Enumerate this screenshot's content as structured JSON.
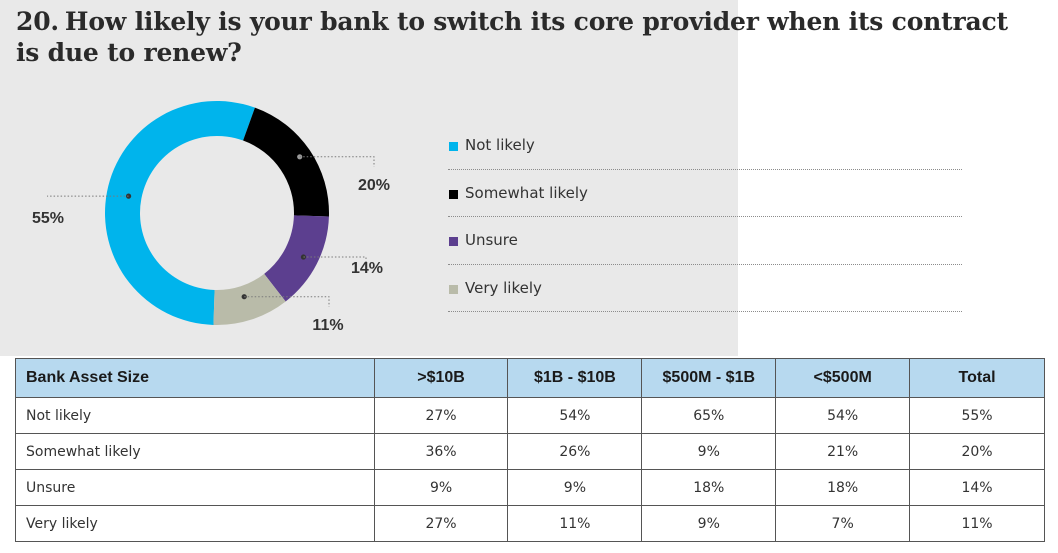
{
  "title": {
    "number": "20.",
    "question": "How likely is your bank to switch its core provider when its contract is due to renew?"
  },
  "chart_data": {
    "type": "pie",
    "title": "How likely is your bank to switch its core provider when its contract is due to renew?",
    "categories": [
      "Not likely",
      "Somewhat likely",
      "Unsure",
      "Very likely"
    ],
    "values": [
      55,
      20,
      14,
      11
    ],
    "value_labels": [
      "55%",
      "20%",
      "14%",
      "11%"
    ],
    "colors": [
      "#00b4ec",
      "#000000",
      "#5c3f8f",
      "#b9bba9"
    ],
    "legend_position": "right"
  },
  "legend": [
    {
      "label": "Not likely",
      "color": "#00b4ec"
    },
    {
      "label": "Somewhat likely",
      "color": "#000000"
    },
    {
      "label": "Unsure",
      "color": "#5c3f8f"
    },
    {
      "label": "Very likely",
      "color": "#b9bba9"
    }
  ],
  "table": {
    "headers": [
      "Bank Asset Size",
      ">$10B",
      "$1B - $10B",
      "$500M - $1B",
      "<$500M",
      "Total"
    ],
    "rows": [
      [
        "Not likely",
        "27%",
        "54%",
        "65%",
        "54%",
        "55%"
      ],
      [
        "Somewhat likely",
        "36%",
        "26%",
        "9%",
        "21%",
        "20%"
      ],
      [
        "Unsure",
        "9%",
        "9%",
        "18%",
        "18%",
        "14%"
      ],
      [
        "Very likely",
        "27%",
        "11%",
        "9%",
        "7%",
        "11%"
      ]
    ]
  }
}
